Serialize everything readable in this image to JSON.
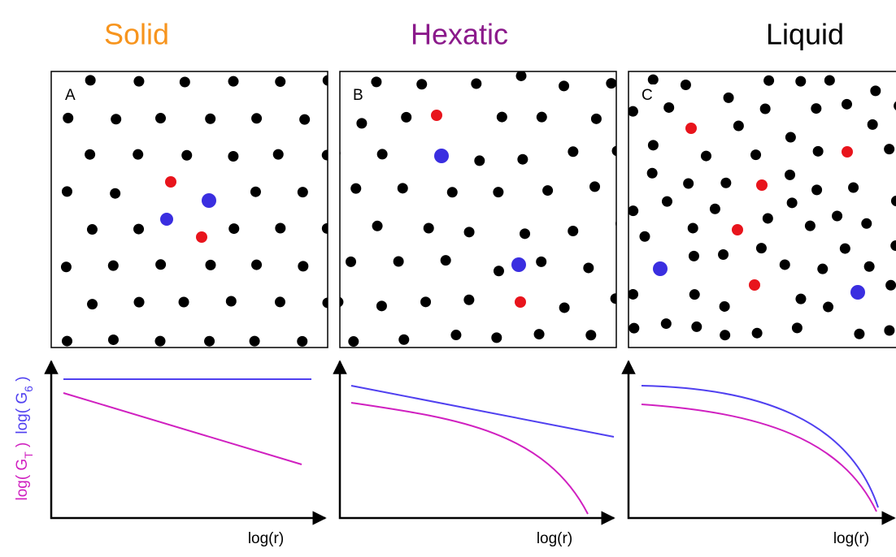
{
  "columns": [
    {
      "title": "Solid",
      "panel": "A",
      "x_label": "log(r)"
    },
    {
      "title": "Hexatic",
      "panel": "B",
      "x_label": "log(r)"
    },
    {
      "title": "Liquid",
      "panel": "C",
      "x_label": "log(r)"
    }
  ],
  "y_label": {
    "translational": {
      "prefix": "log( G",
      "sub": "T",
      "suffix": " )"
    },
    "orientational": {
      "prefix": "log( G",
      "sub": "6",
      "suffix": " )"
    }
  }
}
